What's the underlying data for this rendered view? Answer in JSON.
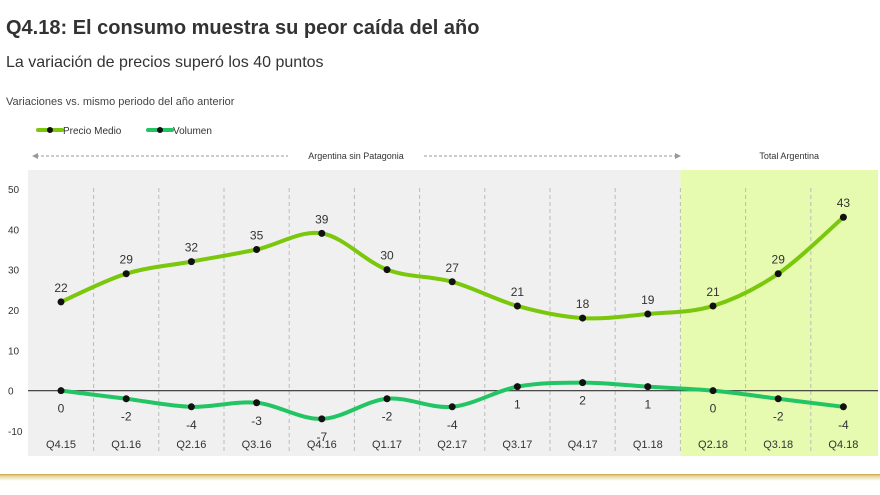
{
  "header": {
    "title": "Q4.18: El consumo muestra su peor caída del año",
    "subtitle": "La variación de precios superó los 40 puntos",
    "note": "Variaciones vs. mismo periodo del año anterior"
  },
  "chart_data": {
    "type": "line",
    "categories": [
      "Q4.15",
      "Q1.16",
      "Q2.16",
      "Q3.16",
      "Q4.16",
      "Q1.17",
      "Q2.17",
      "Q3.17",
      "Q4.17",
      "Q1.18",
      "Q2.18",
      "Q3.18",
      "Q4.18"
    ],
    "series": [
      {
        "name": "Precio Medio",
        "color": "#7ac70c",
        "values": [
          22,
          29,
          32,
          35,
          39,
          30,
          27,
          21,
          18,
          19,
          21,
          29,
          43
        ]
      },
      {
        "name": "Volumen",
        "color": "#22c464",
        "values": [
          0,
          -2,
          -4,
          -3,
          -7,
          -2,
          -4,
          1,
          2,
          1,
          0,
          -2,
          -4
        ]
      }
    ],
    "yticks": [
      50,
      40,
      30,
      20,
      10,
      0,
      -10
    ],
    "ylim": [
      -10,
      50
    ],
    "legend": "top-left",
    "grid": "vertical dashed",
    "regions": [
      {
        "label": "Argentina sin Patagonia",
        "from": "Q4.15",
        "to": "Q1.18",
        "shaded": "gray"
      },
      {
        "label": "Total Argentina",
        "from": "Q2.18",
        "to": "Q4.18",
        "shaded": "light-green"
      }
    ],
    "colors": {
      "region_a": "#f0f0f0",
      "region_b": "#e6fbb0",
      "grid": "#bbbbbb",
      "zero_line": "#333333"
    }
  }
}
